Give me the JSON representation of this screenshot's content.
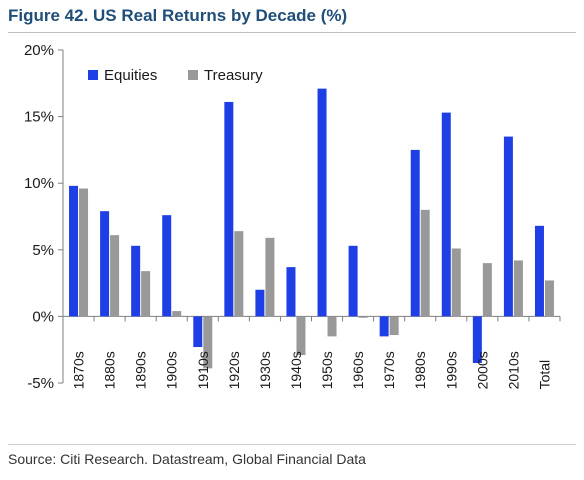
{
  "title": "Figure 42. US Real Returns by Decade (%)",
  "source": "Source: Citi Research. Datastream, Global Financial Data",
  "chart_data": {
    "type": "bar",
    "categories": [
      "1870s",
      "1880s",
      "1890s",
      "1900s",
      "1910s",
      "1920s",
      "1930s",
      "1940s",
      "1950s",
      "1960s",
      "1970s",
      "1980s",
      "1990s",
      "2000s",
      "2010s",
      "Total"
    ],
    "series": [
      {
        "name": "Equities",
        "color": "#1f3fe6",
        "values": [
          9.8,
          7.9,
          5.3,
          7.6,
          -2.3,
          16.1,
          2.0,
          3.7,
          17.1,
          5.3,
          -1.5,
          12.5,
          15.3,
          -3.5,
          13.5,
          6.8
        ]
      },
      {
        "name": "Treasury",
        "color": "#999999",
        "values": [
          9.6,
          6.1,
          3.4,
          0.4,
          -3.9,
          6.4,
          5.9,
          -2.9,
          -1.5,
          -0.1,
          -1.4,
          8.0,
          5.1,
          4.0,
          4.2,
          2.7
        ]
      }
    ],
    "yticks": [
      "-5%",
      "0%",
      "5%",
      "10%",
      "15%",
      "20%"
    ],
    "ylim": [
      -5,
      20
    ],
    "xlabel": "",
    "ylabel": "",
    "grid": false,
    "legend": "top-left"
  }
}
